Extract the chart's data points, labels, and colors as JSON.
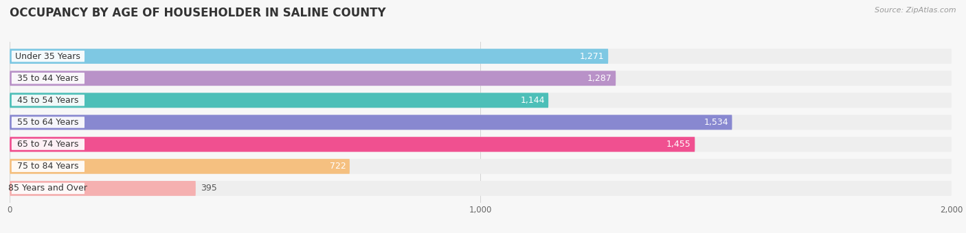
{
  "title": "OCCUPANCY BY AGE OF HOUSEHOLDER IN SALINE COUNTY",
  "source": "Source: ZipAtlas.com",
  "categories": [
    "Under 35 Years",
    "35 to 44 Years",
    "45 to 54 Years",
    "55 to 64 Years",
    "65 to 74 Years",
    "75 to 84 Years",
    "85 Years and Over"
  ],
  "values": [
    1271,
    1287,
    1144,
    1534,
    1455,
    722,
    395
  ],
  "bar_colors": [
    "#7ec8e3",
    "#b992c8",
    "#4dbfb8",
    "#8888d0",
    "#f05090",
    "#f5c080",
    "#f5b0b0"
  ],
  "bar_bg_colors": [
    "#eeeeee",
    "#eeeeee",
    "#eeeeee",
    "#eeeeee",
    "#eeeeee",
    "#eeeeee",
    "#eeeeee"
  ],
  "xlim": [
    0,
    2000
  ],
  "xticks": [
    0,
    1000,
    2000
  ],
  "title_fontsize": 12,
  "label_fontsize": 9,
  "value_fontsize": 9,
  "bar_height": 0.68,
  "background_color": "#f7f7f7",
  "value_inside_threshold": 500,
  "label_pill_color": "#ffffff",
  "value_colors_inside": [
    "#ffffff",
    "#ffffff",
    "#555555",
    "#ffffff",
    "#ffffff",
    "#555555",
    "#555555"
  ]
}
